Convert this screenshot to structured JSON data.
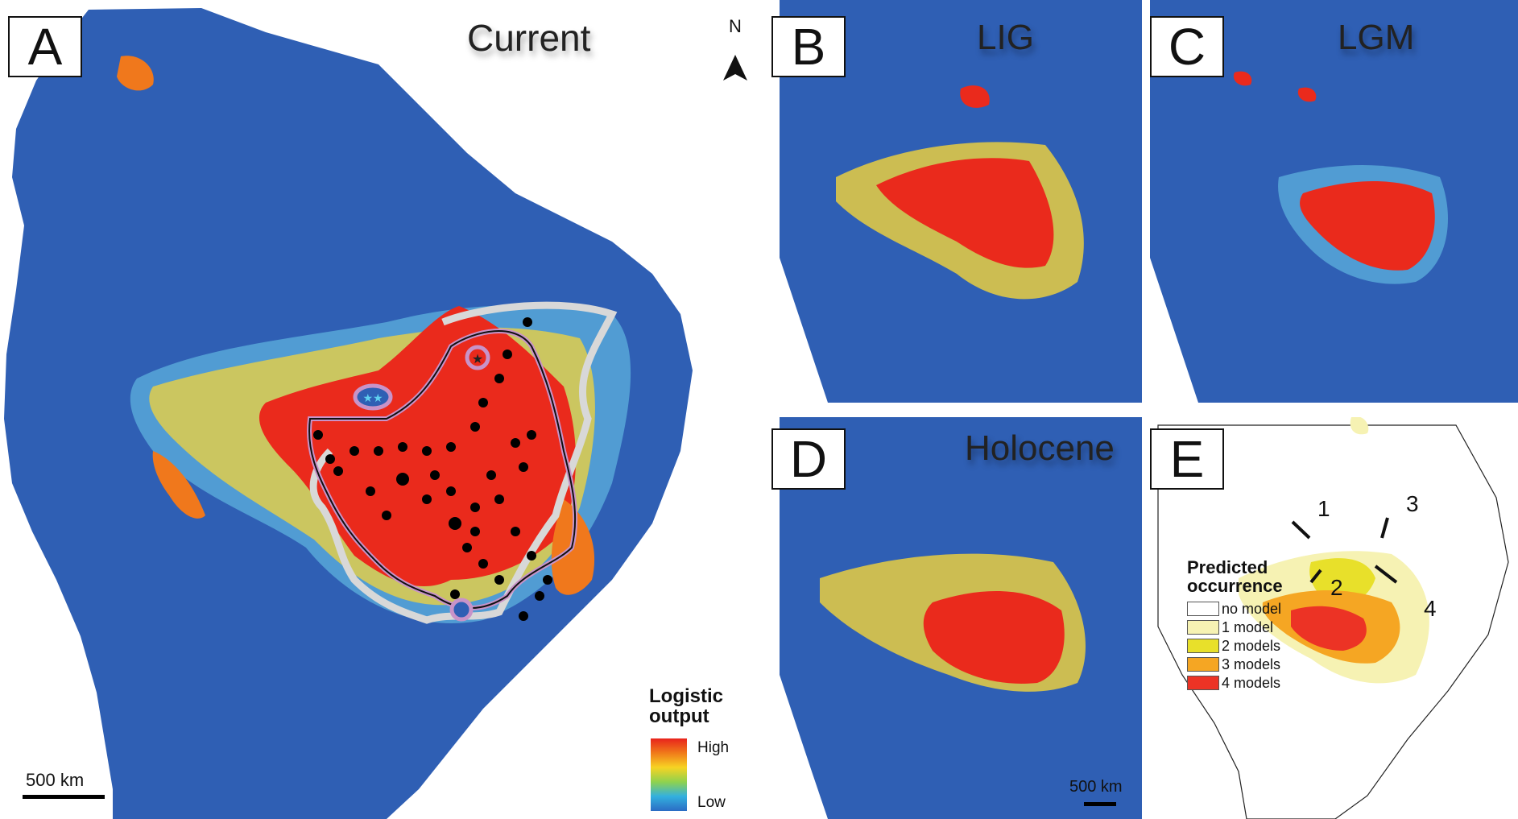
{
  "panels": {
    "a": {
      "letter": "A",
      "title": "Current"
    },
    "b": {
      "letter": "B",
      "title": "LIG"
    },
    "c": {
      "letter": "C",
      "title": "LGM"
    },
    "d": {
      "letter": "D",
      "title": "Holocene"
    },
    "e": {
      "letter": "E"
    }
  },
  "north_arrow": {
    "label": "N"
  },
  "logistic_legend": {
    "title_line1": "Logistic",
    "title_line2": "output",
    "high_label": "High",
    "low_label": "Low",
    "ramp_colors": [
      "#e8231c",
      "#f07a1a",
      "#f7d323",
      "#8fd24e",
      "#33b0df",
      "#2b6cc4"
    ]
  },
  "scale_bar_a": {
    "label": "500 km"
  },
  "scale_bar_d": {
    "label": "500 km"
  },
  "occurrence_legend": {
    "title_line1": "Predicted",
    "title_line2": "occurrence",
    "items": [
      {
        "label": "no model",
        "color": "#ffffff"
      },
      {
        "label": "1 model",
        "color": "#f6f2b3"
      },
      {
        "label": "2 models",
        "color": "#e8e02a"
      },
      {
        "label": "3 models",
        "color": "#f5a623"
      },
      {
        "label": "4 models",
        "color": "#ec3325"
      }
    ]
  },
  "region_labels": [
    "1",
    "2",
    "3",
    "4"
  ],
  "colors": {
    "ocean": "#ffffff",
    "land": "#2f5fb4",
    "high": "#ea2a1c",
    "track": "#d8d8d8",
    "outline": "#c893c8"
  }
}
